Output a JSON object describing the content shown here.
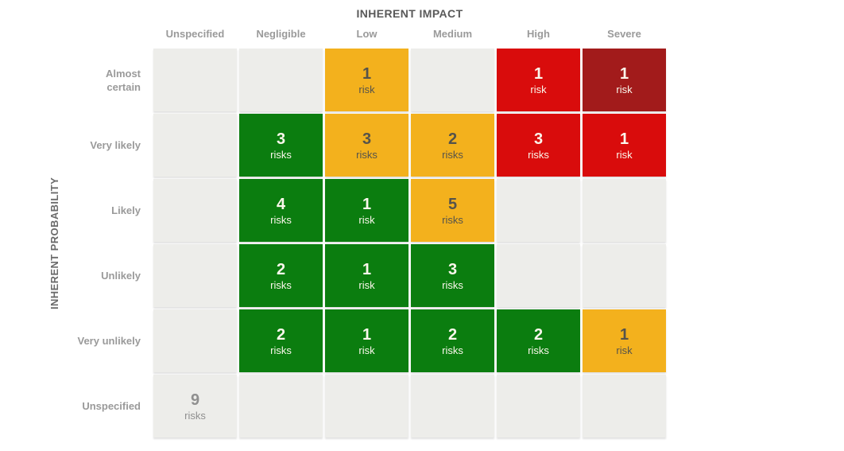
{
  "chart_data": {
    "type": "heatmap",
    "title": "INHERENT IMPACT",
    "x_axis_title": "INHERENT IMPACT",
    "y_axis_title": "INHERENT PROBABILITY",
    "x_categories": [
      "Unspecified",
      "Negligible",
      "Low",
      "Medium",
      "High",
      "Severe"
    ],
    "y_categories": [
      "Almost certain",
      "Very likely",
      "Likely",
      "Unlikely",
      "Very unlikely",
      "Unspecified"
    ],
    "legend": "none",
    "grid": "off",
    "rows": [
      {
        "label": "Almost certain",
        "cells": [
          {
            "count": "",
            "unit": "",
            "level": "empty"
          },
          {
            "count": "",
            "unit": "",
            "level": "empty"
          },
          {
            "count": "1",
            "unit": "risk",
            "level": "medium"
          },
          {
            "count": "",
            "unit": "",
            "level": "empty"
          },
          {
            "count": "1",
            "unit": "risk",
            "level": "high"
          },
          {
            "count": "1",
            "unit": "risk",
            "level": "critical"
          }
        ]
      },
      {
        "label": "Very likely",
        "cells": [
          {
            "count": "",
            "unit": "",
            "level": "empty"
          },
          {
            "count": "3",
            "unit": "risks",
            "level": "low"
          },
          {
            "count": "3",
            "unit": "risks",
            "level": "medium"
          },
          {
            "count": "2",
            "unit": "risks",
            "level": "medium"
          },
          {
            "count": "3",
            "unit": "risks",
            "level": "high"
          },
          {
            "count": "1",
            "unit": "risk",
            "level": "high"
          }
        ]
      },
      {
        "label": "Likely",
        "cells": [
          {
            "count": "",
            "unit": "",
            "level": "empty"
          },
          {
            "count": "4",
            "unit": "risks",
            "level": "low"
          },
          {
            "count": "1",
            "unit": "risk",
            "level": "low"
          },
          {
            "count": "5",
            "unit": "risks",
            "level": "medium"
          },
          {
            "count": "",
            "unit": "",
            "level": "empty"
          },
          {
            "count": "",
            "unit": "",
            "level": "empty"
          }
        ]
      },
      {
        "label": "Unlikely",
        "cells": [
          {
            "count": "",
            "unit": "",
            "level": "empty"
          },
          {
            "count": "2",
            "unit": "risks",
            "level": "low"
          },
          {
            "count": "1",
            "unit": "risk",
            "level": "low"
          },
          {
            "count": "3",
            "unit": "risks",
            "level": "low"
          },
          {
            "count": "",
            "unit": "",
            "level": "empty"
          },
          {
            "count": "",
            "unit": "",
            "level": "empty"
          }
        ]
      },
      {
        "label": "Very unlikely",
        "cells": [
          {
            "count": "",
            "unit": "",
            "level": "empty"
          },
          {
            "count": "2",
            "unit": "risks",
            "level": "low"
          },
          {
            "count": "1",
            "unit": "risk",
            "level": "low"
          },
          {
            "count": "2",
            "unit": "risks",
            "level": "low"
          },
          {
            "count": "2",
            "unit": "risks",
            "level": "low"
          },
          {
            "count": "1",
            "unit": "risk",
            "level": "medium"
          }
        ]
      },
      {
        "label": "Unspecified",
        "cells": [
          {
            "count": "9",
            "unit": "risks",
            "level": "unspecified"
          },
          {
            "count": "",
            "unit": "",
            "level": "empty"
          },
          {
            "count": "",
            "unit": "",
            "level": "empty"
          },
          {
            "count": "",
            "unit": "",
            "level": "empty"
          },
          {
            "count": "",
            "unit": "",
            "level": "empty"
          },
          {
            "count": "",
            "unit": "",
            "level": "empty"
          }
        ]
      }
    ],
    "level_colors": {
      "low": {
        "bg": "#0B7D0F",
        "fg": "#FBF7EC"
      },
      "medium": {
        "bg": "#F3B11D",
        "fg": "#55534B"
      },
      "high": {
        "bg": "#D90C0C",
        "fg": "#FBF7EC"
      },
      "critical": {
        "bg": "#A21B1B",
        "fg": "#FBF7EC"
      },
      "unspecified": {
        "bg": "#EDEDEA",
        "fg": "#8F8F8F"
      },
      "empty": {
        "bg": "#EDEDEA",
        "fg": "#8F8F8F"
      }
    }
  },
  "ui_colors": {
    "background": "#FFFFFF",
    "axis_title": "#595959",
    "category_label": "#9A9A9A",
    "cell_gap": "#FFFFFF"
  }
}
